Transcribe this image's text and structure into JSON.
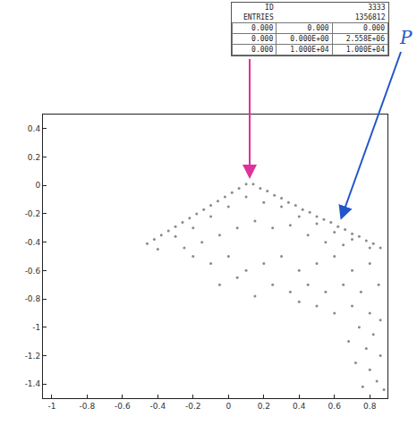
{
  "chart_data": {
    "type": "scatter",
    "x": [
      -0.46,
      -0.42,
      -0.38,
      -0.34,
      -0.3,
      -0.26,
      -0.22,
      -0.18,
      -0.14,
      -0.1,
      -0.06,
      -0.02,
      0.02,
      0.06,
      0.1,
      0.14,
      0.18,
      0.22,
      0.26,
      0.3,
      0.34,
      0.38,
      0.42,
      0.46,
      0.5,
      0.54,
      0.58,
      0.62,
      0.66,
      0.7,
      0.74,
      0.78,
      0.82,
      0.86,
      0.1,
      0.2,
      0.3,
      0.0,
      -0.1,
      -0.2,
      -0.3,
      0.4,
      0.5,
      0.6,
      0.7,
      0.8,
      0.15,
      0.25,
      0.35,
      0.45,
      0.55,
      0.65,
      0.05,
      -0.05,
      -0.15,
      -0.25,
      -0.4,
      -0.2,
      -0.1,
      0.0,
      0.1,
      0.2,
      0.3,
      0.4,
      0.5,
      0.6,
      0.7,
      0.8,
      0.85,
      0.75,
      0.65,
      0.55,
      0.45,
      0.35,
      0.25,
      0.15,
      0.05,
      -0.05,
      0.7,
      0.8,
      0.86,
      0.74,
      0.82,
      0.68,
      0.78,
      0.86,
      0.72,
      0.8,
      0.84,
      0.76,
      0.88,
      0.6,
      0.5,
      0.4
    ],
    "y": [
      -0.41,
      -0.38,
      -0.35,
      -0.32,
      -0.29,
      -0.26,
      -0.23,
      -0.2,
      -0.17,
      -0.14,
      -0.11,
      -0.08,
      -0.05,
      -0.02,
      0.01,
      0.01,
      -0.02,
      -0.04,
      -0.07,
      -0.09,
      -0.12,
      -0.14,
      -0.17,
      -0.19,
      -0.22,
      -0.24,
      -0.26,
      -0.29,
      -0.31,
      -0.34,
      -0.36,
      -0.39,
      -0.41,
      -0.44,
      -0.08,
      -0.12,
      -0.15,
      -0.15,
      -0.22,
      -0.3,
      -0.36,
      -0.22,
      -0.27,
      -0.33,
      -0.38,
      -0.44,
      -0.25,
      -0.3,
      -0.28,
      -0.35,
      -0.4,
      -0.42,
      -0.3,
      -0.35,
      -0.4,
      -0.44,
      -0.45,
      -0.5,
      -0.55,
      -0.5,
      -0.6,
      -0.55,
      -0.5,
      -0.6,
      -0.55,
      -0.5,
      -0.6,
      -0.55,
      -0.7,
      -0.75,
      -0.7,
      -0.75,
      -0.7,
      -0.75,
      -0.7,
      -0.78,
      -0.65,
      -0.7,
      -0.85,
      -0.9,
      -0.95,
      -1.0,
      -1.05,
      -1.1,
      -1.15,
      -1.2,
      -1.25,
      -1.3,
      -1.38,
      -1.42,
      -1.44,
      -0.9,
      -0.85,
      -0.82
    ],
    "color": "#8a8a8a",
    "marker": "circle",
    "xlim": [
      -1.05,
      0.9
    ],
    "ylim": [
      -1.5,
      0.5
    ],
    "xticks": [
      -1,
      -0.8,
      -0.6,
      -0.4,
      -0.2,
      0,
      0.2,
      0.4,
      0.6,
      0.8
    ],
    "yticks": [
      -1.4,
      -1.2,
      -1,
      -0.8,
      -0.6,
      -0.4,
      -0.2,
      0,
      0.2,
      0.4
    ],
    "grid": false
  },
  "stats_box": {
    "header": [
      [
        "ID",
        "3333"
      ],
      [
        "ENTRIES",
        "1356812"
      ]
    ],
    "table": [
      [
        "0.000",
        "0.000",
        "0.000"
      ],
      [
        "0.000",
        "0.000E+00",
        "2.558E+06"
      ],
      [
        "0.000",
        "1.000E+04",
        "1.000E+04"
      ]
    ]
  },
  "annotations": [
    {
      "text": "P"
    }
  ]
}
